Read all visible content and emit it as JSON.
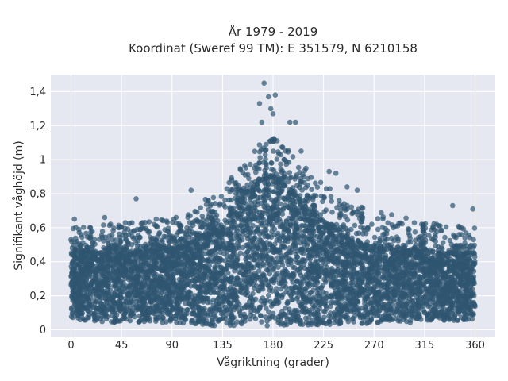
{
  "chart_data": {
    "type": "scatter",
    "title_line1": "År 1979 - 2019",
    "title_line2": "Koordinat (Sweref 99 TM): E 351579, N 6210158",
    "xlabel": "Vågriktning (grader)",
    "ylabel": "Signifikant våghöjd (m)",
    "xlim": [
      -18,
      378
    ],
    "ylim": [
      -0.04,
      1.5
    ],
    "xticks": [
      {
        "value": 0,
        "label": "0"
      },
      {
        "value": 45,
        "label": "45"
      },
      {
        "value": 90,
        "label": "90"
      },
      {
        "value": 135,
        "label": "135"
      },
      {
        "value": 180,
        "label": "180"
      },
      {
        "value": 225,
        "label": "225"
      },
      {
        "value": 270,
        "label": "270"
      },
      {
        "value": 315,
        "label": "315"
      },
      {
        "value": 360,
        "label": "360"
      }
    ],
    "yticks": [
      {
        "value": 0,
        "label": "0"
      },
      {
        "value": 0.2,
        "label": "0,2"
      },
      {
        "value": 0.4,
        "label": "0,4"
      },
      {
        "value": 0.6,
        "label": "0,6"
      },
      {
        "value": 0.8,
        "label": "0,8"
      },
      {
        "value": 1.0,
        "label": "1"
      },
      {
        "value": 1.2,
        "label": "1,2"
      },
      {
        "value": 1.4,
        "label": "1,4"
      }
    ],
    "grid": true,
    "marker_color": "#2f5670",
    "plot_background": "#e5e8f1",
    "envelope": {
      "x": [
        0,
        20,
        45,
        60,
        90,
        110,
        135,
        150,
        170,
        180,
        190,
        205,
        225,
        250,
        270,
        300,
        315,
        340,
        360
      ],
      "dense_max": [
        0.45,
        0.46,
        0.47,
        0.47,
        0.48,
        0.52,
        0.62,
        0.75,
        0.88,
        0.9,
        0.85,
        0.75,
        0.62,
        0.52,
        0.48,
        0.46,
        0.46,
        0.45,
        0.45
      ],
      "dense_min": [
        0.06,
        0.05,
        0.04,
        0.04,
        0.04,
        0.03,
        0.02,
        0.02,
        0.02,
        0.02,
        0.02,
        0.02,
        0.03,
        0.03,
        0.04,
        0.04,
        0.05,
        0.05,
        0.06
      ],
      "sparse_max": [
        0.6,
        0.62,
        0.63,
        0.64,
        0.66,
        0.72,
        0.85,
        0.95,
        1.12,
        1.15,
        1.08,
        0.98,
        0.88,
        0.75,
        0.7,
        0.66,
        0.64,
        0.62,
        0.6
      ]
    },
    "outliers": [
      {
        "x": 172,
        "y": 1.45
      },
      {
        "x": 182,
        "y": 1.38
      },
      {
        "x": 168,
        "y": 1.33
      },
      {
        "x": 176,
        "y": 1.37
      },
      {
        "x": 178,
        "y": 1.3
      },
      {
        "x": 195,
        "y": 1.22
      },
      {
        "x": 200,
        "y": 1.22
      },
      {
        "x": 180,
        "y": 1.27
      },
      {
        "x": 170,
        "y": 1.22
      },
      {
        "x": 205,
        "y": 1.05
      },
      {
        "x": 230,
        "y": 0.93
      },
      {
        "x": 236,
        "y": 0.92
      },
      {
        "x": 246,
        "y": 0.84
      },
      {
        "x": 255,
        "y": 0.82
      },
      {
        "x": 58,
        "y": 0.77
      },
      {
        "x": 107,
        "y": 0.82
      },
      {
        "x": 340,
        "y": 0.73
      },
      {
        "x": 358,
        "y": 0.71
      },
      {
        "x": 3,
        "y": 0.65
      },
      {
        "x": 30,
        "y": 0.66
      }
    ]
  }
}
